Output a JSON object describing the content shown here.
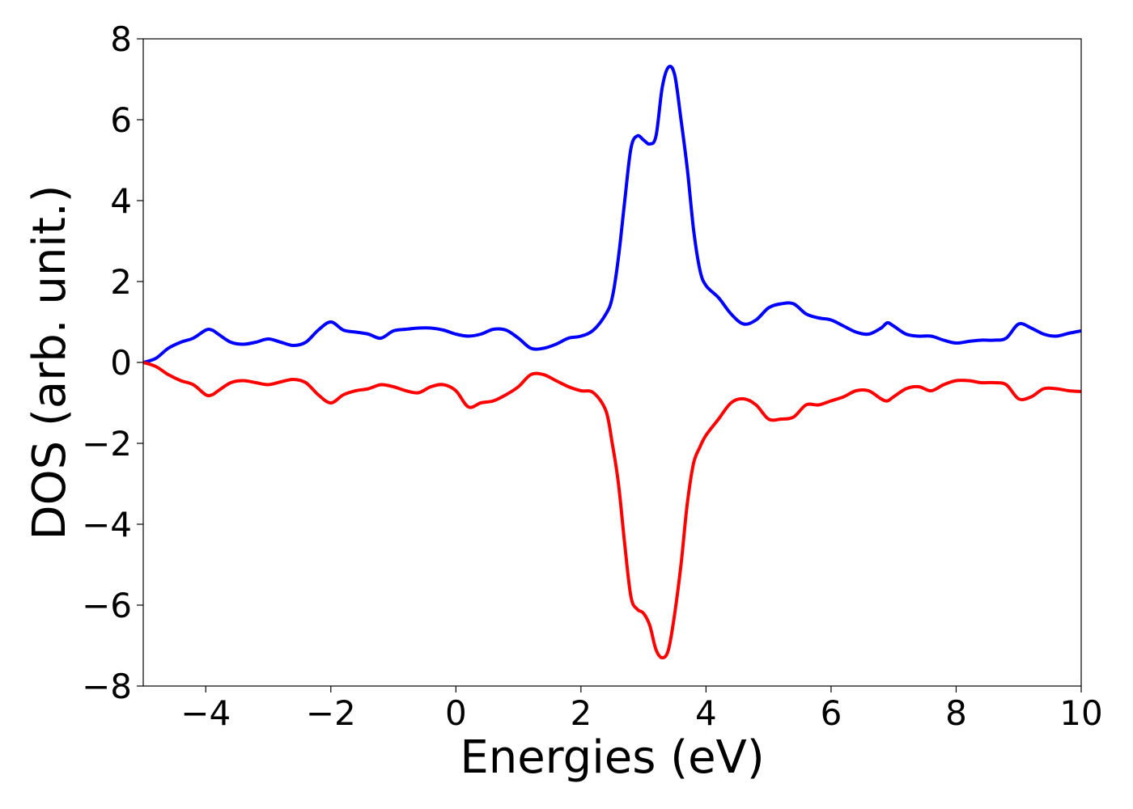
{
  "chart_data": {
    "type": "line",
    "xlabel": "Energies (eV)",
    "ylabel": "DOS (arb. unit.)",
    "xlim": [
      -5,
      10
    ],
    "ylim": [
      -8,
      8
    ],
    "grid": false,
    "x_ticks": [
      -4,
      -2,
      0,
      2,
      4,
      6,
      8,
      10
    ],
    "x_tick_labels": [
      "−4",
      "−2",
      "0",
      "2",
      "4",
      "6",
      "8",
      "10"
    ],
    "y_ticks": [
      -8,
      -6,
      -4,
      -2,
      0,
      2,
      4,
      6,
      8
    ],
    "y_tick_labels": [
      "−8",
      "−6",
      "−4",
      "−2",
      "0",
      "2",
      "4",
      "6",
      "8"
    ],
    "series": [
      {
        "color": "#0000ff",
        "x": [
          -5.0,
          -4.8,
          -4.6,
          -4.4,
          -4.2,
          -4.0,
          -3.9,
          -3.8,
          -3.6,
          -3.4,
          -3.2,
          -3.0,
          -2.8,
          -2.6,
          -2.4,
          -2.2,
          -2.0,
          -1.8,
          -1.6,
          -1.4,
          -1.2,
          -1.0,
          -0.8,
          -0.6,
          -0.4,
          -0.2,
          0.0,
          0.2,
          0.4,
          0.6,
          0.8,
          1.0,
          1.2,
          1.4,
          1.6,
          1.8,
          2.0,
          2.2,
          2.4,
          2.5,
          2.6,
          2.7,
          2.8,
          2.9,
          3.0,
          3.1,
          3.2,
          3.3,
          3.4,
          3.5,
          3.6,
          3.7,
          3.8,
          3.9,
          4.0,
          4.2,
          4.4,
          4.6,
          4.8,
          5.0,
          5.2,
          5.4,
          5.6,
          5.8,
          6.0,
          6.2,
          6.4,
          6.6,
          6.8,
          6.9,
          7.0,
          7.2,
          7.4,
          7.6,
          7.8,
          8.0,
          8.2,
          8.4,
          8.6,
          8.8,
          9.0,
          9.2,
          9.4,
          9.6,
          9.8,
          10.0
        ],
        "y": [
          0.0,
          0.1,
          0.35,
          0.5,
          0.6,
          0.8,
          0.8,
          0.7,
          0.5,
          0.45,
          0.5,
          0.58,
          0.5,
          0.42,
          0.5,
          0.8,
          1.0,
          0.8,
          0.75,
          0.7,
          0.6,
          0.78,
          0.82,
          0.85,
          0.85,
          0.8,
          0.7,
          0.65,
          0.7,
          0.82,
          0.8,
          0.6,
          0.35,
          0.35,
          0.45,
          0.6,
          0.65,
          0.8,
          1.2,
          1.6,
          2.6,
          4.0,
          5.3,
          5.6,
          5.5,
          5.4,
          5.6,
          6.8,
          7.3,
          7.1,
          6.0,
          4.8,
          3.3,
          2.3,
          1.9,
          1.6,
          1.2,
          0.95,
          1.05,
          1.35,
          1.45,
          1.45,
          1.2,
          1.1,
          1.05,
          0.9,
          0.75,
          0.7,
          0.85,
          0.98,
          0.9,
          0.7,
          0.65,
          0.65,
          0.55,
          0.48,
          0.52,
          0.55,
          0.55,
          0.6,
          0.95,
          0.85,
          0.7,
          0.65,
          0.72,
          0.78
        ]
      },
      {
        "color": "#ff0000",
        "x": [
          -5.0,
          -4.8,
          -4.6,
          -4.4,
          -4.2,
          -4.0,
          -3.9,
          -3.8,
          -3.6,
          -3.4,
          -3.2,
          -3.0,
          -2.8,
          -2.6,
          -2.4,
          -2.2,
          -2.0,
          -1.8,
          -1.6,
          -1.4,
          -1.2,
          -1.0,
          -0.8,
          -0.6,
          -0.4,
          -0.2,
          0.0,
          0.2,
          0.4,
          0.6,
          0.8,
          1.0,
          1.2,
          1.4,
          1.6,
          1.8,
          2.0,
          2.2,
          2.4,
          2.5,
          2.6,
          2.7,
          2.8,
          2.9,
          3.0,
          3.1,
          3.2,
          3.3,
          3.4,
          3.5,
          3.6,
          3.7,
          3.8,
          3.9,
          4.0,
          4.2,
          4.4,
          4.6,
          4.8,
          5.0,
          5.2,
          5.4,
          5.6,
          5.8,
          6.0,
          6.2,
          6.4,
          6.6,
          6.8,
          6.9,
          7.0,
          7.2,
          7.4,
          7.6,
          7.8,
          8.0,
          8.2,
          8.4,
          8.6,
          8.8,
          9.0,
          9.2,
          9.4,
          9.6,
          9.8,
          10.0
        ],
        "y": [
          0.0,
          -0.1,
          -0.3,
          -0.45,
          -0.55,
          -0.8,
          -0.8,
          -0.7,
          -0.5,
          -0.45,
          -0.5,
          -0.55,
          -0.48,
          -0.42,
          -0.5,
          -0.8,
          -1.0,
          -0.8,
          -0.7,
          -0.65,
          -0.55,
          -0.6,
          -0.7,
          -0.75,
          -0.6,
          -0.55,
          -0.7,
          -1.1,
          -1.0,
          -0.95,
          -0.8,
          -0.6,
          -0.3,
          -0.3,
          -0.45,
          -0.6,
          -0.7,
          -0.75,
          -1.2,
          -2.0,
          -3.0,
          -4.5,
          -5.8,
          -6.1,
          -6.2,
          -6.5,
          -7.1,
          -7.3,
          -7.1,
          -6.2,
          -5.0,
          -3.5,
          -2.5,
          -2.1,
          -1.8,
          -1.4,
          -1.0,
          -0.9,
          -1.05,
          -1.4,
          -1.4,
          -1.35,
          -1.05,
          -1.05,
          -0.95,
          -0.85,
          -0.7,
          -0.7,
          -0.9,
          -0.95,
          -0.85,
          -0.65,
          -0.6,
          -0.7,
          -0.55,
          -0.45,
          -0.45,
          -0.5,
          -0.5,
          -0.55,
          -0.9,
          -0.85,
          -0.65,
          -0.65,
          -0.7,
          -0.72
        ]
      }
    ]
  }
}
